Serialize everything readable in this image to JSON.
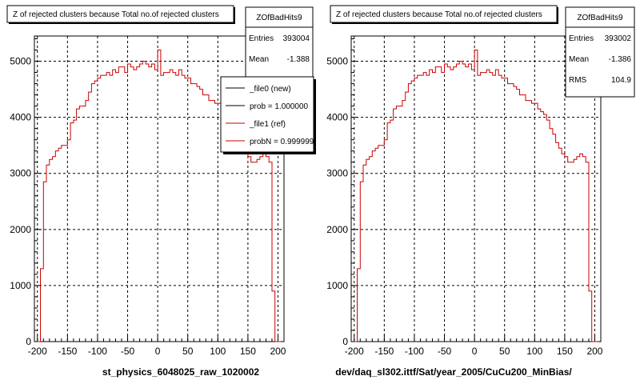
{
  "chart_data": [
    {
      "type": "histogram",
      "title": "Z of rejected clusters  because Total no.of rejected clusters",
      "xlabel": "st_physics_6048025_raw_1020002",
      "ylabel": "",
      "xlim": [
        -205,
        210
      ],
      "ylim": [
        0,
        5450
      ],
      "grid": true,
      "x_ticks": [
        "-200",
        "-150",
        "-100",
        "-50",
        "0",
        "50",
        "100",
        "150",
        "200"
      ],
      "y_ticks": [
        "0",
        "1000",
        "2000",
        "3000",
        "4000",
        "5000"
      ],
      "stats_box": {
        "name": "ZOfBadHits9",
        "rows": [
          {
            "label": "Entries",
            "value": "393004"
          },
          {
            "label": "Mean",
            "value": "-1.388"
          }
        ]
      },
      "legend": {
        "entries": [
          {
            "label": "_file0 (new)",
            "color": "#000000"
          },
          {
            "label": "prob = 1.000000",
            "color": "#000000"
          },
          {
            "label": "_file1 (ref)",
            "color": "#cc0000"
          },
          {
            "label": "probN = 0.999999",
            "color": "#cc0000"
          }
        ]
      },
      "series": [
        {
          "color": "#cc0000",
          "x": [
            -200,
            -195,
            -190,
            -185,
            -180,
            -175,
            -170,
            -165,
            -160,
            -155,
            -150,
            -145,
            -140,
            -135,
            -130,
            -125,
            -120,
            -115,
            -110,
            -105,
            -100,
            -95,
            -90,
            -85,
            -80,
            -75,
            -70,
            -65,
            -60,
            -55,
            -50,
            -45,
            -40,
            -35,
            -30,
            -25,
            -20,
            -15,
            -10,
            -5,
            0,
            5,
            10,
            15,
            20,
            25,
            30,
            35,
            40,
            45,
            50,
            55,
            60,
            65,
            70,
            75,
            80,
            85,
            90,
            95,
            100,
            105,
            110,
            115,
            120,
            125,
            130,
            135,
            140,
            145,
            150,
            155,
            160,
            165,
            170,
            175,
            180,
            185,
            190,
            195,
            200
          ],
          "values": [
            0,
            1300,
            2850,
            3150,
            3250,
            3300,
            3400,
            3450,
            3500,
            3500,
            3600,
            3900,
            3950,
            4150,
            4200,
            4200,
            4300,
            4450,
            4600,
            4650,
            4700,
            4750,
            4750,
            4800,
            4750,
            4850,
            4800,
            4900,
            4900,
            4800,
            4950,
            4900,
            4850,
            4900,
            4950,
            5000,
            4950,
            4900,
            4950,
            4850,
            5200,
            4750,
            4800,
            4800,
            4850,
            4800,
            4750,
            4850,
            4750,
            4700,
            4700,
            4600,
            4600,
            4550,
            4500,
            4400,
            4400,
            4300,
            4300,
            4250,
            4250,
            4150,
            4100,
            4050,
            3950,
            3800,
            3700,
            3550,
            3450,
            3350,
            3300,
            3200,
            3200,
            3250,
            3300,
            3350,
            3300,
            3200,
            900,
            0,
            0
          ]
        }
      ]
    },
    {
      "type": "histogram",
      "title": "Z of rejected clusters  because Total no.of rejected clusters",
      "xlabel": "dev/daq_sl302.ittf/Sat/year_2005/CuCu200_MinBias/",
      "ylabel": "",
      "xlim": [
        -205,
        210
      ],
      "ylim": [
        0,
        5450
      ],
      "grid": true,
      "x_ticks": [
        "-200",
        "-150",
        "-100",
        "-50",
        "0",
        "50",
        "100",
        "150",
        "200"
      ],
      "y_ticks": [
        "0",
        "1000",
        "2000",
        "3000",
        "4000",
        "5000"
      ],
      "stats_box": {
        "name": "ZOfBadHits9",
        "rows": [
          {
            "label": "Entries",
            "value": "393002"
          },
          {
            "label": "Mean",
            "value": "-1.386"
          },
          {
            "label": "RMS",
            "value": "104.9"
          }
        ]
      },
      "series": [
        {
          "color": "#cc0000",
          "x": [
            -200,
            -195,
            -190,
            -185,
            -180,
            -175,
            -170,
            -165,
            -160,
            -155,
            -150,
            -145,
            -140,
            -135,
            -130,
            -125,
            -120,
            -115,
            -110,
            -105,
            -100,
            -95,
            -90,
            -85,
            -80,
            -75,
            -70,
            -65,
            -60,
            -55,
            -50,
            -45,
            -40,
            -35,
            -30,
            -25,
            -20,
            -15,
            -10,
            -5,
            0,
            5,
            10,
            15,
            20,
            25,
            30,
            35,
            40,
            45,
            50,
            55,
            60,
            65,
            70,
            75,
            80,
            85,
            90,
            95,
            100,
            105,
            110,
            115,
            120,
            125,
            130,
            135,
            140,
            145,
            150,
            155,
            160,
            165,
            170,
            175,
            180,
            185,
            190,
            195,
            200
          ],
          "values": [
            0,
            1300,
            2850,
            3150,
            3250,
            3300,
            3400,
            3450,
            3500,
            3500,
            3600,
            3900,
            3950,
            4150,
            4200,
            4200,
            4300,
            4450,
            4600,
            4650,
            4700,
            4750,
            4750,
            4800,
            4750,
            4850,
            4800,
            4900,
            4900,
            4800,
            4950,
            4900,
            4850,
            4900,
            4950,
            5000,
            4950,
            4900,
            4950,
            4850,
            5200,
            4750,
            4800,
            4800,
            4850,
            4800,
            4750,
            4850,
            4750,
            4700,
            4700,
            4600,
            4600,
            4550,
            4500,
            4400,
            4400,
            4300,
            4300,
            4250,
            4250,
            4150,
            4100,
            4050,
            3950,
            3800,
            3700,
            3550,
            3450,
            3350,
            3300,
            3200,
            3200,
            3250,
            3300,
            3350,
            3300,
            3200,
            900,
            0,
            0
          ]
        }
      ]
    }
  ]
}
